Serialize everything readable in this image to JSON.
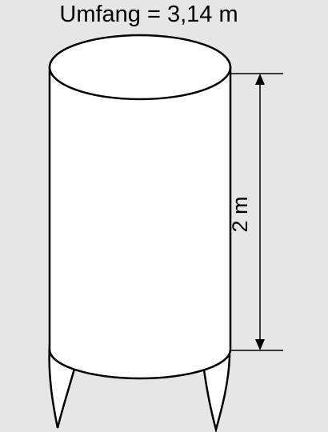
{
  "diagram": {
    "circumference_label": "Umfang = 3,14 m",
    "height_label": "2 m"
  },
  "colors": {
    "background": "#e6e6e6",
    "stroke": "#000000",
    "fill": "#ffffff"
  }
}
